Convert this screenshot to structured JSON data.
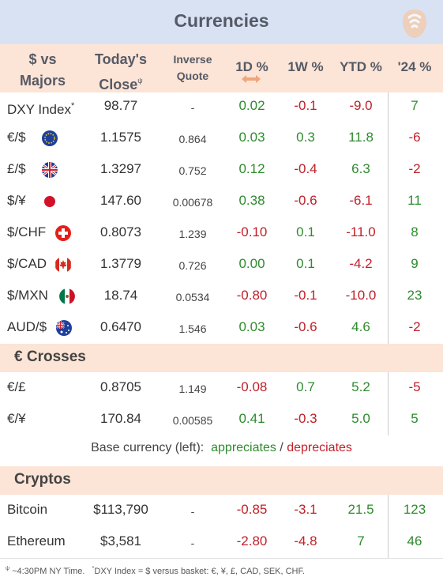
{
  "title": "Currencies",
  "logo_icon": "phone-wave-icon",
  "columns": {
    "pair": "$ vs Majors",
    "pair_line1": "$ vs",
    "pair_line2": "Majors",
    "close_line1": "Today's",
    "close_line2": "Close",
    "close_mark": "ψ",
    "inverse_line1": "Inverse",
    "inverse_line2": "Quote",
    "d1": "1D %",
    "w1": "1W %",
    "ytd": "YTD %",
    "y24": "'24 %",
    "sort_icon": "double-arrow-icon"
  },
  "majors": [
    {
      "pair": "DXY Index",
      "mark": "*",
      "flag": "",
      "close": "98.77",
      "inverse": "-",
      "d1": "0.02",
      "w1": "-0.1",
      "ytd": "-9.0",
      "y24": "7"
    },
    {
      "pair": "€/$",
      "flag": "eu-flag-icon",
      "close": "1.1575",
      "inverse": "0.864",
      "d1": "0.03",
      "w1": "0.3",
      "ytd": "11.8",
      "y24": "-6"
    },
    {
      "pair": "£/$",
      "flag": "uk-flag-icon",
      "close": "1.3297",
      "inverse": "0.752",
      "d1": "0.12",
      "w1": "-0.4",
      "ytd": "6.3",
      "y24": "-2"
    },
    {
      "pair": "$/¥",
      "flag": "japan-flag-icon",
      "close": "147.60",
      "inverse": "0.00678",
      "d1": "0.38",
      "w1": "-0.6",
      "ytd": "-6.1",
      "y24": "11"
    },
    {
      "pair": "$/CHF",
      "flag": "swiss-flag-icon",
      "close": "0.8073",
      "inverse": "1.239",
      "d1": "-0.10",
      "w1": "0.1",
      "ytd": "-11.0",
      "y24": "8"
    },
    {
      "pair": "$/CAD",
      "flag": "canada-flag-icon",
      "close": "1.3779",
      "inverse": "0.726",
      "d1": "0.00",
      "w1": "0.1",
      "ytd": "-4.2",
      "y24": "9"
    },
    {
      "pair": "$/MXN",
      "flag": "mexico-flag-icon",
      "close": "18.74",
      "inverse": "0.0534",
      "d1": "-0.80",
      "w1": "-0.1",
      "ytd": "-10.0",
      "y24": "23"
    },
    {
      "pair": "AUD/$",
      "flag": "australia-flag-icon",
      "close": "0.6470",
      "inverse": "1.546",
      "d1": "0.03",
      "w1": "-0.6",
      "ytd": "4.6",
      "y24": "-2"
    }
  ],
  "crosses_title": "€ Crosses",
  "crosses": [
    {
      "pair": "€/£",
      "close": "0.8705",
      "inverse": "1.149",
      "d1": "-0.08",
      "w1": "0.7",
      "ytd": "5.2",
      "y24": "-5"
    },
    {
      "pair": "€/¥",
      "close": "170.84",
      "inverse": "0.00585",
      "d1": "0.41",
      "w1": "-0.3",
      "ytd": "5.0",
      "y24": "5"
    }
  ],
  "legend": {
    "prefix": "Base currency (left):",
    "appreciates": "appreciates",
    "sep": "/",
    "depreciates": "depreciates"
  },
  "cryptos_title": "Cryptos",
  "cryptos": [
    {
      "pair": "Bitcoin",
      "close": "$113,790",
      "inverse": "-",
      "d1": "-0.85",
      "w1": "-3.1",
      "ytd": "21.5",
      "y24": "123"
    },
    {
      "pair": "Ethereum",
      "close": "$3,581",
      "inverse": "-",
      "d1": "-2.80",
      "w1": "-4.8",
      "ytd": "7",
      "y24": "46"
    }
  ],
  "footer": {
    "mark1": "ψ",
    "note1": "~4:30PM NY Time.",
    "mark2": "*",
    "note2": "DXY Index = $ versus basket: €, ¥, £, CAD, SEK, CHF."
  },
  "colors": {
    "positive": "#2e8b2e",
    "negative": "#c0202a",
    "header_bg": "#d9e2f3",
    "subheader_bg": "#fce4d6"
  }
}
